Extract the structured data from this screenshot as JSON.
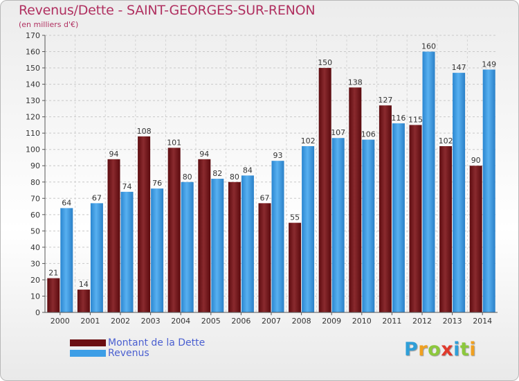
{
  "header": {
    "title": "Revenus/Dette - SAINT-GEORGES-SUR-RENON",
    "subtitle": "(en milliers d'€)"
  },
  "chart_data": {
    "type": "bar",
    "categories": [
      "2000",
      "2001",
      "2002",
      "2003",
      "2004",
      "2005",
      "2006",
      "2007",
      "2008",
      "2009",
      "2010",
      "2011",
      "2012",
      "2013",
      "2014"
    ],
    "series": [
      {
        "name": "Montant de la Dette",
        "color": "#7a1e22",
        "values": [
          21,
          14,
          94,
          108,
          101,
          94,
          80,
          67,
          55,
          150,
          138,
          127,
          115,
          102,
          90
        ]
      },
      {
        "name": "Revenus",
        "color": "#3d9ee6",
        "values": [
          64,
          67,
          74,
          76,
          80,
          82,
          84,
          93,
          102,
          107,
          106,
          116,
          160,
          147,
          149
        ]
      }
    ],
    "ylim": [
      0,
      170
    ],
    "yticks": [
      0,
      10,
      20,
      30,
      40,
      50,
      60,
      70,
      80,
      90,
      100,
      110,
      120,
      130,
      140,
      150,
      160,
      170
    ],
    "grid": true,
    "legend_position": "bottom-left"
  },
  "legend": {
    "items": [
      {
        "label": "Montant de la Dette",
        "color": "#6b0f12"
      },
      {
        "label": "Revenus",
        "color": "#3d9ee6"
      }
    ]
  },
  "logo": {
    "letters": [
      {
        "ch": "P",
        "color": "#2f9fd8"
      },
      {
        "ch": "r",
        "color": "#f0a020"
      },
      {
        "ch": "o",
        "color": "#8cc83c"
      },
      {
        "ch": "x",
        "color": "#e03a2c"
      },
      {
        "ch": "i",
        "color": "#2f9fd8"
      },
      {
        "ch": "t",
        "color": "#8cc83c"
      },
      {
        "ch": "i",
        "color": "#f0a020"
      }
    ]
  }
}
